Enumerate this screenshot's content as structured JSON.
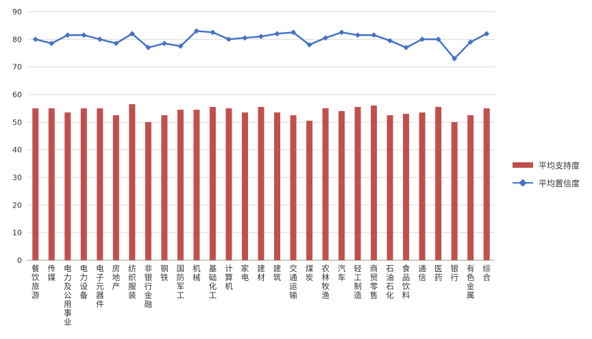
{
  "chart_data": {
    "type": "bar",
    "categories": [
      "餐饮旅游",
      "传媒",
      "电力及公用事业",
      "电力设备",
      "电子元器件",
      "房地产",
      "纺织服装",
      "非银行金融",
      "钢铁",
      "国防军工",
      "机械",
      "基础化工",
      "计算机",
      "家电",
      "建材",
      "建筑",
      "交通运输",
      "煤炭",
      "农林牧渔",
      "汽车",
      "轻工制造",
      "商贸零售",
      "石油石化",
      "食品饮料",
      "通信",
      "医药",
      "银行",
      "有色金属",
      "综合"
    ],
    "series": [
      {
        "name": "平均支持度",
        "type": "bar",
        "color": "#C0504D",
        "values": [
          55,
          55,
          53.5,
          55,
          55,
          52.5,
          56.5,
          50,
          52.5,
          54.5,
          54.5,
          55.5,
          55,
          53.5,
          55.5,
          53.5,
          52.5,
          50.5,
          55,
          54,
          55.5,
          56,
          52.5,
          53,
          53.5,
          55.5,
          50,
          52.5,
          55
        ]
      },
      {
        "name": "平均置信度",
        "type": "line",
        "color": "#4472C4",
        "values": [
          80,
          78.5,
          81.5,
          81.5,
          80,
          78.5,
          82,
          77,
          78.5,
          77.5,
          83,
          82.5,
          80,
          80.5,
          81,
          82,
          82.5,
          78,
          80.5,
          82.5,
          81.5,
          81.5,
          79.5,
          77,
          80,
          80,
          73,
          79,
          82
        ]
      }
    ],
    "ylim": [
      0,
      90
    ],
    "yticks": [
      "0",
      "10",
      "20",
      "30",
      "40",
      "50",
      "60",
      "70",
      "80",
      "90"
    ],
    "grid": true,
    "legend_position": "right"
  }
}
